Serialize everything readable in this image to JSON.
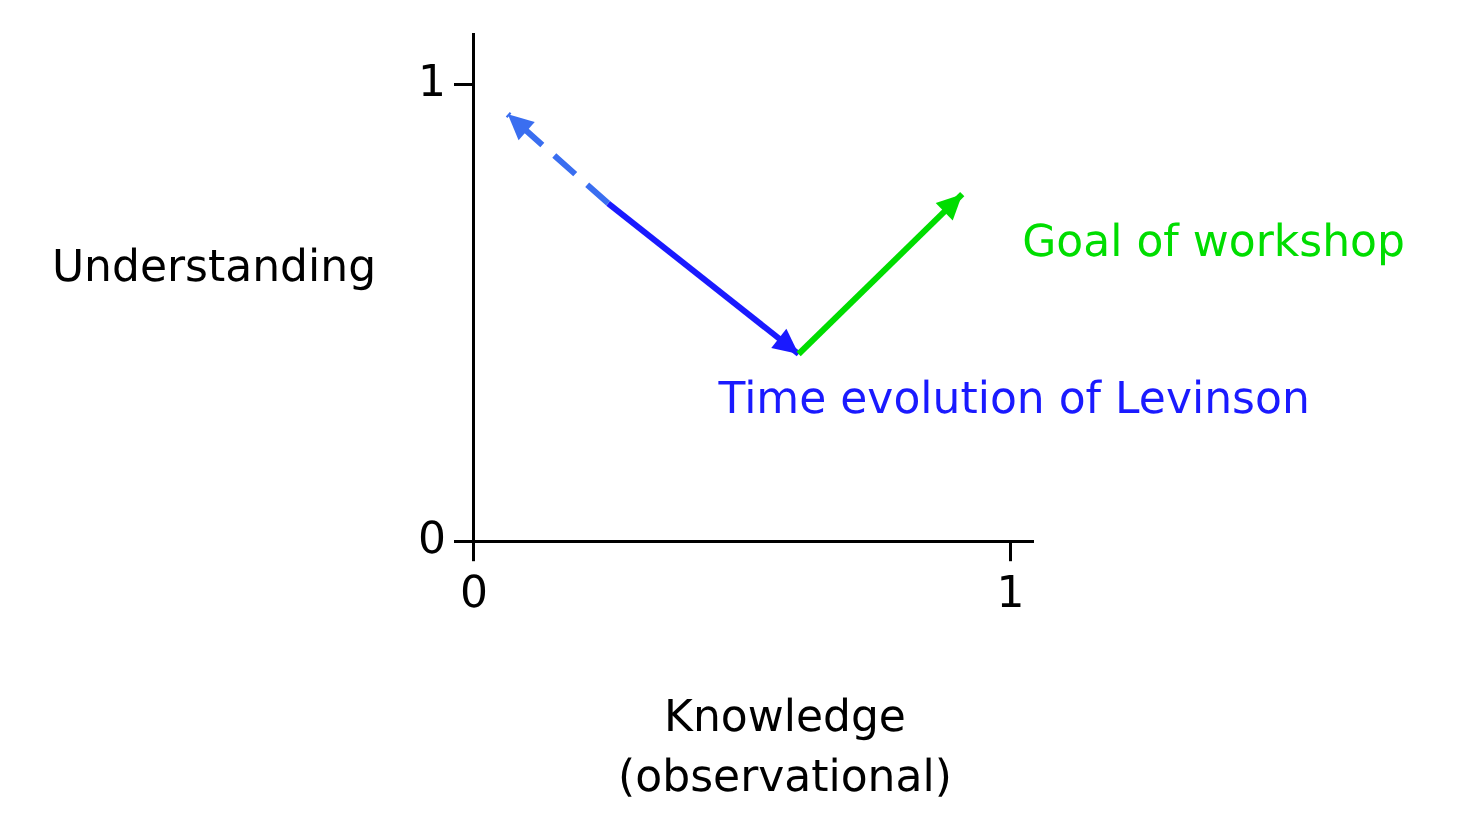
{
  "chart_data": {
    "type": "line",
    "xlabel": "Knowledge\n(observational)",
    "ylabel": "Understanding",
    "xlim": [
      0,
      1.04
    ],
    "xticks": [
      0,
      1
    ],
    "ylim": [
      0,
      1.11
    ],
    "yticks": [
      0,
      1
    ],
    "grid": false,
    "legend": false,
    "series": [
      {
        "color": "#1a1aff",
        "x": [
          0.25,
          0.605
        ],
        "values": [
          0.74,
          0.41
        ],
        "line_style": "solid"
      },
      {
        "color": "#3a6ef0",
        "x": [
          0.25,
          0.063
        ],
        "values": [
          0.74,
          0.935
        ],
        "line_style": "dashed"
      },
      {
        "color": "#00dd00",
        "x": [
          0.605,
          0.91
        ],
        "values": [
          0.41,
          0.76
        ],
        "line_style": "solid"
      }
    ],
    "annotations": [
      {
        "text": "Time evolution of Levinson",
        "x": 0.605,
        "y": 0.41
      },
      {
        "text": "Goal of workshop",
        "x": 0.91,
        "y": 0.76
      }
    ]
  }
}
